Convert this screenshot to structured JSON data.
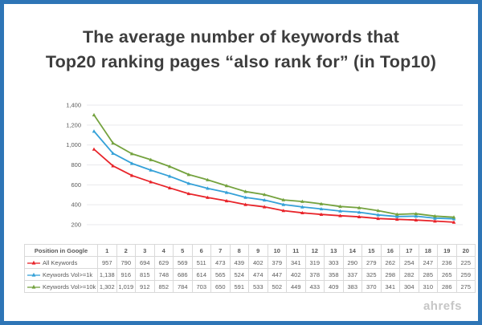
{
  "frame": {
    "border_color": "#2e75b6",
    "background": "#ffffff"
  },
  "title": {
    "line1": "The average number of keywords that",
    "line2": "Top20 ranking pages “also rank for” (in Top10)"
  },
  "watermark": "ahrefs",
  "chart_data": {
    "type": "line",
    "title": "The average number of keywords that Top20 ranking pages “also rank for” (in Top10)",
    "xlabel": "Position in Google",
    "ylabel": "",
    "categories": [
      1,
      2,
      3,
      4,
      5,
      6,
      7,
      8,
      9,
      10,
      11,
      12,
      13,
      14,
      15,
      16,
      17,
      18,
      19,
      20
    ],
    "series": [
      {
        "name": "All Keywords",
        "color": "#e8242a",
        "values": [
          957,
          790,
          694,
          629,
          569,
          511,
          473,
          439,
          402,
          379,
          341,
          319,
          303,
          290,
          279,
          262,
          254,
          247,
          236,
          225
        ]
      },
      {
        "name": "Keywords Vol>=1k",
        "color": "#35a1d8",
        "values": [
          1138,
          916,
          815,
          748,
          686,
          614,
          565,
          524,
          474,
          447,
          402,
          378,
          358,
          337,
          325,
          298,
          282,
          285,
          265,
          259
        ]
      },
      {
        "name": "Keywords Vol>=10k",
        "color": "#74a23e",
        "values": [
          1302,
          1019,
          912,
          852,
          784,
          703,
          650,
          591,
          533,
          502,
          449,
          433,
          409,
          383,
          370,
          341,
          304,
          310,
          286,
          275
        ]
      }
    ],
    "ylim": [
      200,
      1400
    ],
    "yticks": [
      200,
      400,
      600,
      800,
      1000,
      1200,
      1400
    ],
    "grid": true,
    "gridline_color": "#e9e9ec",
    "legend_position": "table-left"
  }
}
